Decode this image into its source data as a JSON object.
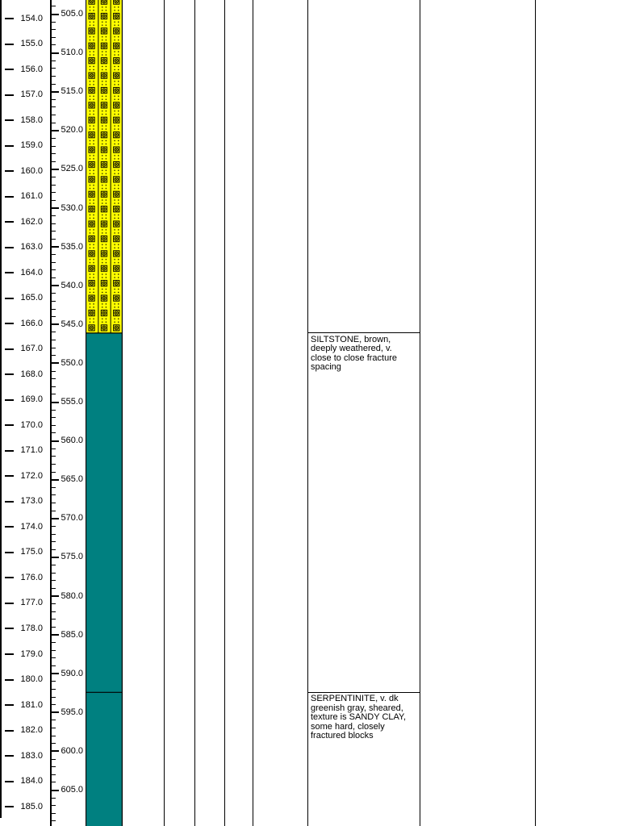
{
  "log": {
    "title": "borehole-log-strip",
    "depth_m_axis": {
      "tick_labels": [
        "154.0",
        "155.0",
        "156.0",
        "157.0",
        "158.0",
        "159.0",
        "160.0",
        "161.0",
        "162.0",
        "163.0",
        "164.0",
        "165.0",
        "166.0",
        "167.0",
        "168.0",
        "169.0",
        "170.0",
        "171.0",
        "172.0",
        "173.0",
        "174.0",
        "175.0",
        "176.0",
        "177.0",
        "178.0",
        "179.0",
        "180.0",
        "181.0",
        "182.0",
        "183.0",
        "184.0",
        "185.0"
      ]
    },
    "depth_ft_axis": {
      "tick_labels": [
        "505.0",
        "510.0",
        "515.0",
        "520.0",
        "525.0",
        "530.0",
        "535.0",
        "540.0",
        "545.0",
        "550.0",
        "555.0",
        "560.0",
        "565.0",
        "570.0",
        "575.0",
        "580.0",
        "585.0",
        "590.0",
        "595.0",
        "600.0",
        "605.0"
      ],
      "major_step_ft": 5,
      "minor_step_ft": 1
    },
    "lithology": {
      "zones": [
        {
          "name": "yellow-symbol-hatch-fill",
          "pattern": "boxed-crossed-circle-hatch",
          "color": "#FFFF00",
          "top_ft": 502.0,
          "bottom_ft": 546.1
        },
        {
          "name": "siltstone",
          "pattern": "solid",
          "color": "#008080",
          "top_ft": 546.1,
          "bottom_ft": 592.4
        },
        {
          "name": "serpentinite",
          "pattern": "solid",
          "color": "#008080",
          "top_ft": 592.4,
          "bottom_ft": 610.0
        }
      ]
    },
    "descriptions": [
      {
        "top_ft": 546.1,
        "lines": [
          "SILTSTONE, brown,",
          "deeply weathered, v.",
          "close to close fracture",
          "spacing"
        ]
      },
      {
        "top_ft": 592.4,
        "lines": [
          "SERPENTINITE, v. dk",
          "greenish gray, sheared,",
          "texture is SANDY CLAY,",
          "some hard, closely",
          "fractured blocks"
        ]
      }
    ],
    "colors": {
      "line": "#000000",
      "hatch_fill": "#FFFF00",
      "rock_fill": "#008080",
      "background": "#FFFFFF"
    }
  }
}
